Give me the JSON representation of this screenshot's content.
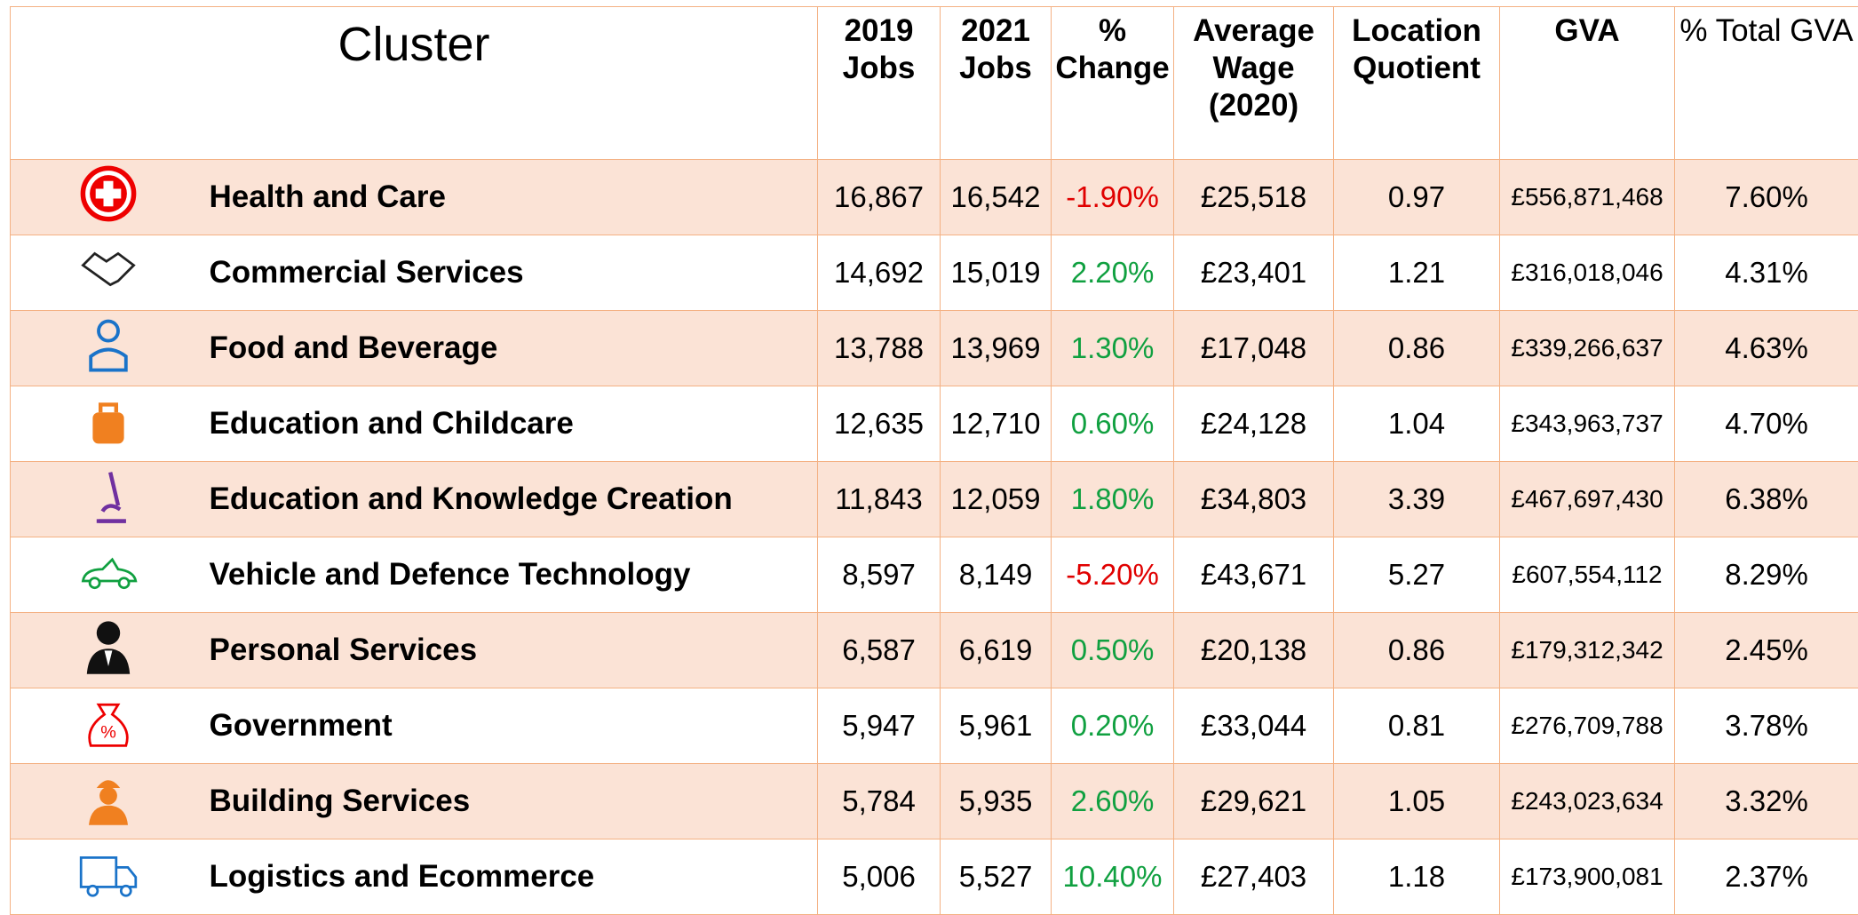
{
  "table": {
    "header": [
      "Cluster",
      "2019 Jobs",
      "2021 Jobs",
      "% Change",
      "Average Wage (2020)",
      "Location Quotient",
      "GVA",
      "% Total GVA"
    ],
    "rows": [
      [
        "Health and Care",
        "16,867",
        "16,542",
        "-1.90%",
        "£25,518",
        "0.97",
        "£556,871,468",
        "7.60%"
      ],
      [
        "Commercial Services",
        "14,692",
        "15,019",
        "2.20%",
        "£23,401",
        "1.21",
        "£316,018,046",
        "4.31%"
      ],
      [
        "Food and Beverage",
        "13,788",
        "13,969",
        "1.30%",
        "£17,048",
        "0.86",
        "£339,266,637",
        "4.63%"
      ],
      [
        "Education and Childcare",
        "12,635",
        "12,710",
        "0.60%",
        "£24,128",
        "1.04",
        "£343,963,737",
        "4.70%"
      ],
      [
        "Education and Knowledge Creation",
        "11,843",
        "12,059",
        "1.80%",
        "£34,803",
        "3.39",
        "£467,697,430",
        "6.38%"
      ],
      [
        "Vehicle and Defence Technology",
        "8,597",
        "8,149",
        "-5.20%",
        "£43,671",
        "5.27",
        "£607,554,112",
        "8.29%"
      ],
      [
        "Personal Services",
        "6,587",
        "6,619",
        "0.50%",
        "£20,138",
        "0.86",
        "£179,312,342",
        "2.45%"
      ],
      [
        "Government",
        "5,947",
        "5,961",
        "0.20%",
        "£33,044",
        "0.81",
        "£276,709,788",
        "3.78%"
      ],
      [
        "Building Services",
        "5,784",
        "5,935",
        "2.60%",
        "£29,621",
        "1.05",
        "£243,023,634",
        "3.32%"
      ],
      [
        "Logistics and Ecommerce",
        "5,006",
        "5,527",
        "10.40%",
        "£27,403",
        "1.18",
        "£173,900,081",
        "2.37%"
      ]
    ]
  }
}
